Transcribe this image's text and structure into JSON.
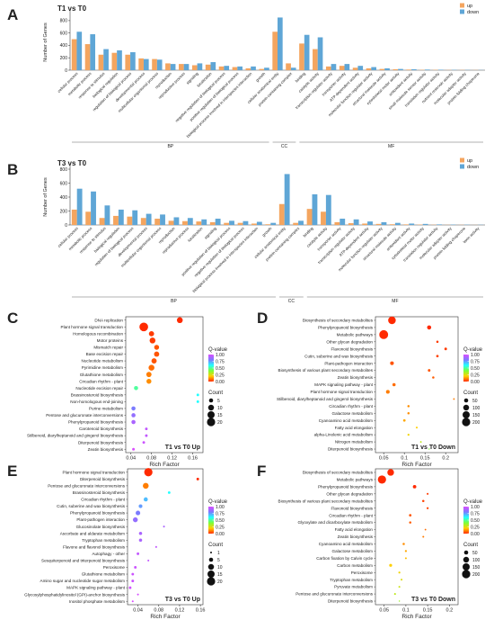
{
  "chart_data": [
    {
      "type": "bar",
      "panel_label": "A",
      "title": "T1 vs T0",
      "y_label": "Number of Genes",
      "categories": [
        "cellular process",
        "metabolic process",
        "response to stimulus",
        "biological regulation",
        "regulation of biological process",
        "developmental process",
        "multicellular organismal process",
        "reproduction",
        "reproductive process",
        "signaling",
        "localization",
        "negative regulation of biological process",
        "positive regulation of biological process",
        "biological process involved in interspecies interaction",
        "growth",
        "cellular anatomical entity",
        "protein-containing complex",
        "binding",
        "catalytic activity",
        "transcription regulator activity",
        "transporter activity",
        "ATP-dependent activity",
        "molecular function regulator activity",
        "structural molecule activity",
        "cytoskeletal motor activity",
        "antioxidant activity",
        "small molecule sensor activity",
        "translation regulator activity",
        "nutrient reservoir activity",
        "molecular adaptor activity",
        "protein folding chaperone"
      ],
      "category_groups": [
        "BP",
        "BP",
        "BP",
        "BP",
        "BP",
        "BP",
        "BP",
        "BP",
        "BP",
        "BP",
        "BP",
        "BP",
        "BP",
        "BP",
        "BP",
        "CC",
        "CC",
        "MF",
        "MF",
        "MF",
        "MF",
        "MF",
        "MF",
        "MF",
        "MF",
        "MF",
        "MF",
        "MF",
        "MF",
        "MF",
        "MF"
      ],
      "series": [
        {
          "name": "up",
          "color": "#f4a55f",
          "values": [
            500,
            420,
            250,
            280,
            250,
            190,
            180,
            110,
            100,
            80,
            90,
            60,
            50,
            30,
            20,
            620,
            110,
            430,
            340,
            60,
            70,
            40,
            30,
            20,
            15,
            10,
            5,
            5,
            3,
            3,
            2
          ]
        },
        {
          "name": "down",
          "color": "#5fa6d6",
          "values": [
            620,
            580,
            340,
            320,
            290,
            180,
            170,
            100,
            100,
            110,
            130,
            70,
            60,
            60,
            40,
            850,
            40,
            570,
            530,
            100,
            100,
            70,
            50,
            30,
            20,
            15,
            10,
            8,
            5,
            4,
            3
          ]
        }
      ],
      "ylim": [
        0,
        900
      ],
      "yticks": [
        0,
        200,
        400,
        600,
        800
      ],
      "legend": "top-right"
    },
    {
      "type": "bar",
      "panel_label": "B",
      "title": "T3 vs T0",
      "y_label": "Number of Genes",
      "categories": [
        "cellular process",
        "metabolic process",
        "response to stimulus",
        "biological regulation",
        "regulation of biological process",
        "developmental process",
        "multicellular organismal process",
        "reproduction",
        "reproductive process",
        "localization",
        "signaling",
        "positive regulation of biological process",
        "negative regulation of biological process",
        "biological process involved in interspecies interaction",
        "growth",
        "cellular anatomical entity",
        "protein-containing complex",
        "binding",
        "catalytic activity",
        "transporter activity",
        "transcription regulator activity",
        "ATP-dependent activity",
        "molecular function regulator activity",
        "structural molecule activity",
        "antioxidant activity",
        "cytoskeletal motor activity",
        "translation regulator activity",
        "molecular adaptor activity",
        "protein folding chaperone",
        "toxin activity"
      ],
      "category_groups": [
        "BP",
        "BP",
        "BP",
        "BP",
        "BP",
        "BP",
        "BP",
        "BP",
        "BP",
        "BP",
        "BP",
        "BP",
        "BP",
        "BP",
        "BP",
        "CC",
        "CC",
        "MF",
        "MF",
        "MF",
        "MF",
        "MF",
        "MF",
        "MF",
        "MF",
        "MF",
        "MF",
        "MF",
        "MF",
        "MF"
      ],
      "series": [
        {
          "name": "up",
          "color": "#f4a55f",
          "values": [
            220,
            190,
            100,
            130,
            120,
            100,
            90,
            60,
            55,
            50,
            40,
            30,
            30,
            20,
            10,
            300,
            30,
            230,
            190,
            40,
            25,
            20,
            15,
            10,
            8,
            5,
            3,
            2,
            2,
            1
          ]
        },
        {
          "name": "down",
          "color": "#5fa6d6",
          "values": [
            520,
            480,
            280,
            220,
            210,
            160,
            150,
            110,
            100,
            80,
            90,
            60,
            55,
            45,
            30,
            730,
            60,
            440,
            430,
            90,
            80,
            50,
            40,
            30,
            20,
            15,
            8,
            5,
            4,
            3
          ]
        }
      ],
      "ylim": [
        0,
        800
      ],
      "yticks": [
        0,
        200,
        400,
        600,
        800
      ],
      "legend": "top-right"
    },
    {
      "type": "scatter",
      "panel_label": "C",
      "annotation": "T1 vs T0 Up",
      "x_label": "Rich Factor",
      "categories": [
        "DNA replication",
        "Plant hormone signal transduction",
        "Homologous recombination",
        "Motor proteins",
        "Mismatch repair",
        "Base excision repair",
        "Nucleotide metabolism",
        "Pyrimidine metabolism",
        "Glutathione metabolism",
        "Circadian rhythm - plant",
        "Nucleotide excision repair",
        "Brassinosteroid biosynthesis",
        "Non-homologous end-joining",
        "Purine metabolism",
        "Pentose and glucuronate interconversions",
        "Phenylpropanoid biosynthesis",
        "Carotenoid biosynthesis",
        "Stilbenoid, diarylheptanoid and gingerol biosynthesis",
        "Diterpenoid biosynthesis",
        "Zeatin biosynthesis"
      ],
      "x": [
        0.135,
        0.065,
        0.08,
        0.082,
        0.09,
        0.09,
        0.085,
        0.08,
        0.075,
        0.075,
        0.05,
        0.17,
        0.17,
        0.045,
        0.045,
        0.045,
        0.07,
        0.07,
        0.065,
        0.045
      ],
      "sizes": [
        10,
        22,
        8,
        10,
        7,
        8,
        8,
        10,
        8,
        7,
        5,
        2,
        2,
        5,
        5,
        5,
        2,
        2,
        2,
        2
      ],
      "qvalues": [
        0,
        0,
        0.02,
        0.02,
        0.05,
        0.05,
        0.05,
        0.08,
        0.1,
        0.12,
        0.5,
        0.6,
        0.6,
        0.8,
        0.85,
        0.9,
        0.95,
        0.95,
        0.97,
        1
      ],
      "xlim": [
        0.03,
        0.18
      ],
      "xticks": [
        0.04,
        0.08,
        0.12,
        0.16
      ],
      "color_legend_title": "Q-value",
      "colorbar_ticks": [
        {
          "value": 0,
          "label": "0.00"
        },
        {
          "value": 0.25,
          "label": "0.25"
        },
        {
          "value": 0.5,
          "label": "0.50"
        },
        {
          "value": 0.75,
          "label": "0.75"
        },
        {
          "value": 1,
          "label": "1.00"
        }
      ],
      "colors": [
        "#ff2a00",
        "#ffd000",
        "#7cff3a",
        "#22ffff",
        "#7b7bff",
        "#d94cff"
      ],
      "size_legend_title": "Count",
      "size_legend": [
        5,
        10,
        15,
        20
      ]
    },
    {
      "type": "scatter",
      "panel_label": "D",
      "annotation": "T1 vs T0 Down",
      "x_label": "Rich Factor",
      "categories": [
        "Biosynthesis of secondary metabolites",
        "Phenylpropanoid biosynthesis",
        "Metabolic pathways",
        "Other glycan degradation",
        "Flavonoid biosynthesis",
        "Cutin, suberine and wax biosynthesis",
        "Plant-pathogen interaction",
        "Biosynthesis of various plant secondary metabolites",
        "Zeatin biosynthesis",
        "MAPK signaling pathway - plant",
        "Plant hormone signal transduction",
        "Stilbenoid, diarylheptanoid and gingerol biosynthesis",
        "Circadian rhythm - plant",
        "Galactose metabolism",
        "Cyanoamino acid metabolism",
        "Fatty acid elongation",
        "alpha-Linolenic acid metabolism",
        "Nitrogen metabolism",
        "Diterpenoid biosynthesis"
      ],
      "x": [
        0.07,
        0.16,
        0.05,
        0.18,
        0.2,
        0.18,
        0.07,
        0.16,
        0.17,
        0.075,
        0.06,
        0.22,
        0.11,
        0.11,
        0.1,
        0.13,
        0.11,
        0.14,
        0.16
      ],
      "sizes": [
        170,
        50,
        230,
        15,
        20,
        18,
        40,
        20,
        15,
        30,
        40,
        8,
        15,
        15,
        18,
        10,
        12,
        8,
        5
      ],
      "qvalues": [
        0,
        0,
        0,
        0.02,
        0.02,
        0.03,
        0.05,
        0.05,
        0.06,
        0.08,
        0.1,
        0.1,
        0.12,
        0.12,
        0.15,
        0.2,
        0.22,
        0.3,
        0.4
      ],
      "xlim": [
        0.03,
        0.23
      ],
      "xticks": [
        0.05,
        0.1,
        0.15,
        0.2
      ],
      "color_legend_title": "Q-value",
      "colorbar_ticks": [
        {
          "value": 0,
          "label": "0.00"
        },
        {
          "value": 0.25,
          "label": "0.25"
        },
        {
          "value": 0.5,
          "label": "0.50"
        },
        {
          "value": 0.75,
          "label": "0.75"
        },
        {
          "value": 1,
          "label": "1.00"
        }
      ],
      "colors": [
        "#ff2a00",
        "#ffd000",
        "#7cff3a",
        "#22ffff",
        "#7b7bff",
        "#d94cff"
      ],
      "size_legend_title": "Count",
      "size_legend": [
        50,
        100,
        150,
        200
      ]
    },
    {
      "type": "scatter",
      "panel_label": "E",
      "annotation": "T3 vs T0 Up",
      "x_label": "Rich Factor",
      "categories": [
        "Plant hormone signal transduction",
        "Diterpenoid biosynthesis",
        "Pentose and glucuronate interconversions",
        "Brassinosteroid biosynthesis",
        "Circadian rhythm - plant",
        "Cutin, suberine and wax biosynthesis",
        "Phenylpropanoid biosynthesis",
        "Plant-pathogen interaction",
        "Glucosinolate biosynthesis",
        "Ascorbate and aldarate metabolism",
        "Tryptophan metabolism",
        "Flavone and flavonol biosynthesis",
        "Autophagy - other",
        "Sesquiterpenoid and triterpenoid biosynthesis",
        "Peroxisome",
        "Glutathione metabolism",
        "Amino sugar and nucleotide sugar metabolism",
        "MAPK signaling pathway - plant",
        "Glycosylphosphatidylinositol (GPI)-anchor biosynthesis",
        "Inositol phosphate metabolism"
      ],
      "x": [
        0.06,
        0.155,
        0.055,
        0.1,
        0.055,
        0.045,
        0.04,
        0.035,
        0.09,
        0.045,
        0.045,
        0.075,
        0.04,
        0.06,
        0.035,
        0.03,
        0.03,
        0.025,
        0.04,
        0.03
      ],
      "sizes": [
        20,
        2,
        10,
        2,
        5,
        4,
        6,
        7,
        1,
        3,
        3,
        1,
        2,
        1,
        2,
        2,
        2,
        2,
        1,
        1
      ],
      "qvalues": [
        0,
        0,
        0.1,
        0.6,
        0.7,
        0.75,
        0.8,
        0.85,
        0.9,
        0.9,
        0.9,
        0.95,
        0.95,
        0.95,
        0.97,
        0.97,
        0.97,
        0.98,
        0.99,
        1
      ],
      "xlim": [
        0.02,
        0.165
      ],
      "xticks": [
        0.04,
        0.08,
        0.12,
        0.16
      ],
      "color_legend_title": "Q-value",
      "colorbar_ticks": [
        {
          "value": 0,
          "label": "0.00"
        },
        {
          "value": 0.25,
          "label": "0.25"
        },
        {
          "value": 0.5,
          "label": "0.50"
        },
        {
          "value": 0.75,
          "label": "0.75"
        },
        {
          "value": 1,
          "label": "1.00"
        }
      ],
      "colors": [
        "#ff2a00",
        "#ffd000",
        "#7cff3a",
        "#22ffff",
        "#7b7bff",
        "#d94cff"
      ],
      "size_legend_title": "Count",
      "size_legend": [
        1,
        5,
        10,
        15,
        20
      ]
    },
    {
      "type": "scatter",
      "panel_label": "F",
      "annotation": "T3 vs T0 Down",
      "x_label": "Rich Factor",
      "categories": [
        "Biosynthesis of secondary metabolites",
        "Metabolic pathways",
        "Phenylpropanoid biosynthesis",
        "Other glycan degradation",
        "Biosynthesis of various plant secondary metabolites",
        "Flavonoid biosynthesis",
        "Circadian rhythm - plant",
        "Glyoxylate and dicarboxylate metabolism",
        "Fatty acid elongation",
        "Zeatin biosynthesis",
        "Cyanoamino acid metabolism",
        "Galactose metabolism",
        "Carbon fixation by Calvin cycle",
        "Carbon metabolism",
        "Peroxisome",
        "Tryptophan metabolism",
        "Pyruvate metabolism",
        "Pentose and glucuronate interconversions",
        "Diterpenoid biosynthesis"
      ],
      "x": [
        0.065,
        0.045,
        0.12,
        0.15,
        0.14,
        0.15,
        0.11,
        0.11,
        0.145,
        0.14,
        0.095,
        0.1,
        0.1,
        0.065,
        0.085,
        0.09,
        0.085,
        0.075,
        0.085
      ],
      "sizes": [
        130,
        200,
        35,
        10,
        15,
        12,
        18,
        15,
        8,
        10,
        15,
        12,
        10,
        25,
        12,
        10,
        10,
        10,
        5
      ],
      "qvalues": [
        0,
        0,
        0,
        0.02,
        0.03,
        0.03,
        0.05,
        0.06,
        0.08,
        0.1,
        0.12,
        0.15,
        0.18,
        0.2,
        0.22,
        0.25,
        0.28,
        0.3,
        0.35
      ],
      "xlim": [
        0.03,
        0.22
      ],
      "xticks": [
        0.05,
        0.1,
        0.15,
        0.2
      ],
      "color_legend_title": "Q-value",
      "colorbar_ticks": [
        {
          "value": 0,
          "label": "0.00"
        },
        {
          "value": 0.25,
          "label": "0.25"
        },
        {
          "value": 0.5,
          "label": "0.50"
        },
        {
          "value": 0.75,
          "label": "0.75"
        },
        {
          "value": 1,
          "label": "1.00"
        }
      ],
      "colors": [
        "#ff2a00",
        "#ffd000",
        "#7cff3a",
        "#22ffff",
        "#7b7bff",
        "#d94cff"
      ],
      "size_legend_title": "Count",
      "size_legend": [
        50,
        100,
        150,
        200
      ]
    }
  ]
}
